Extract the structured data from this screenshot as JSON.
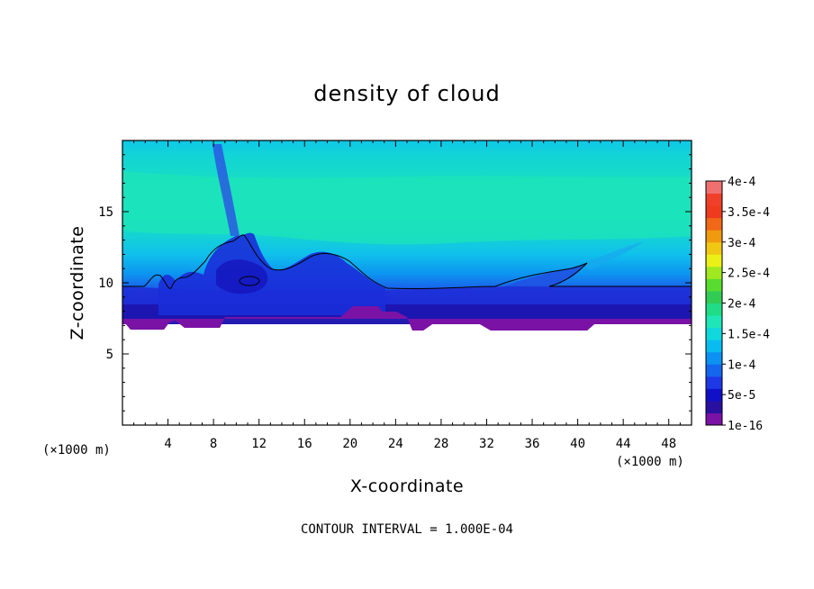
{
  "chart_data": {
    "type": "heatmap",
    "title": "density of cloud",
    "xlabel": "X-coordinate",
    "ylabel": "Z-coordinate",
    "x_unit_left": "(×1000 m)",
    "x_unit_right": "(×1000 m)",
    "xlim": [
      0,
      50
    ],
    "ylim": [
      0,
      20
    ],
    "xticks": [
      4,
      8,
      12,
      16,
      20,
      24,
      28,
      32,
      36,
      40,
      44,
      48
    ],
    "yticks": [
      5,
      10,
      15
    ],
    "colorbar": {
      "labels": [
        "1e-16",
        "5e-5",
        "1e-4",
        "1.5e-4",
        "2e-4",
        "2.5e-4",
        "3e-4",
        "3.5e-4",
        "4e-4"
      ],
      "colors": [
        "#7a12a6",
        "#2a10a0",
        "#1010c8",
        "#1e38e6",
        "#1466ee",
        "#0c92f2",
        "#08bcf2",
        "#10d8dc",
        "#1ee6b6",
        "#20dc86",
        "#30cc54",
        "#58dc30",
        "#a0e820",
        "#eaf018",
        "#f0c814",
        "#f09a10",
        "#f06818",
        "#f03a1e",
        "#f0402a",
        "#f07070"
      ]
    },
    "layers": [
      {
        "level": "1.5e-4",
        "z_from": 12.6,
        "z_to": 17.6
      },
      {
        "level": "1e-4",
        "z_from": 10.8,
        "z_to": 19.5
      },
      {
        "level": "5e-5",
        "z_from": 8.4,
        "z_to": 10.8
      },
      {
        "level": "1e-16",
        "z_from": 7.0,
        "z_to": 8.4
      }
    ],
    "contour_interval": "CONTOUR INTERVAL = 1.000E-04"
  },
  "colors": {
    "background": "#ffffff",
    "axis": "#000000"
  }
}
